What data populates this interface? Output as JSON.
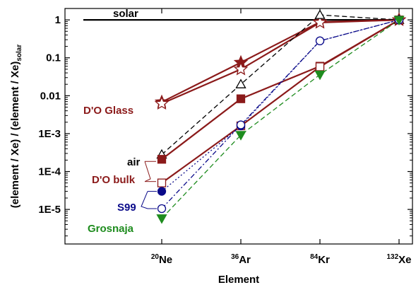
{
  "chart_data": {
    "type": "line",
    "title": "",
    "xlabel": "Element",
    "ylabel": "(element / Xe) / (element / Xe)",
    "ylabel_subscript": "solar",
    "yscale": "log",
    "ylim": [
      2e-06,
      3
    ],
    "y_ticks": [
      {
        "value": 1,
        "label": "1"
      },
      {
        "value": 0.1,
        "label": "0.1"
      },
      {
        "value": 0.01,
        "label": "0.01"
      },
      {
        "value": 0.001,
        "label": "1E-3"
      },
      {
        "value": 0.0001,
        "label": "1E-4"
      },
      {
        "value": 1e-05,
        "label": "1E-5"
      }
    ],
    "categories": [
      {
        "sup": "20",
        "name": "Ne"
      },
      {
        "sup": "36",
        "name": "Ar"
      },
      {
        "sup": "84",
        "name": "Kr"
      },
      {
        "sup": "132",
        "name": "Xe"
      }
    ],
    "reference_line": {
      "label": "solar",
      "value": 1,
      "color": "#000000"
    },
    "series": [
      {
        "name": "D'O Glass",
        "label_ref": "dog",
        "marker": "star-filled",
        "line": "solid",
        "color": "#8b1a1a",
        "values": [
          0.0068,
          0.075,
          0.88,
          1.0
        ]
      },
      {
        "name": "D'O Glass",
        "label_ref": "dog",
        "marker": "star-open",
        "line": "solid",
        "color": "#8b1a1a",
        "values": [
          0.0062,
          0.05,
          0.85,
          1.0
        ]
      },
      {
        "name": "air",
        "label_ref": "air",
        "marker": "triangle-open",
        "line": "dash",
        "color": "#000000",
        "values": [
          0.00028,
          0.02,
          1.35,
          1.0
        ]
      },
      {
        "name": "D'O bulk",
        "label_ref": "dob",
        "marker": "square-filled",
        "line": "solid",
        "color": "#8b1a1a",
        "values": [
          0.00021,
          0.0083,
          0.06,
          1.0
        ]
      },
      {
        "name": "D'O bulk",
        "label_ref": "dob",
        "marker": "square-open",
        "line": "solid",
        "color": "#8b1a1a",
        "values": [
          5e-05,
          0.0016,
          0.058,
          1.0
        ]
      },
      {
        "name": "S99",
        "label_ref": "s99",
        "marker": "circle-filled",
        "line": "dot",
        "color": "#0a0a8a",
        "values": [
          3e-05,
          0.0016,
          0.28,
          1.0
        ]
      },
      {
        "name": "S99",
        "label_ref": "s99",
        "marker": "circle-open",
        "line": "dashdot",
        "color": "#0a0a8a",
        "values": [
          1.05e-05,
          0.0017,
          0.28,
          1.0
        ]
      },
      {
        "name": "Grosnaja",
        "label_ref": "gro",
        "marker": "triangle-down-filled",
        "line": "dash",
        "color": "#1e8c1e",
        "values": [
          5.8e-06,
          0.00092,
          0.036,
          1.0
        ]
      }
    ],
    "annotations": [
      {
        "id": "dog",
        "text": "D'O Glass",
        "color": "#8b1a1a"
      },
      {
        "id": "air",
        "text": "air",
        "color": "#000000"
      },
      {
        "id": "dob",
        "text": "D'O bulk",
        "color": "#8b1a1a"
      },
      {
        "id": "s99",
        "text": "S99",
        "color": "#0a0a8a"
      },
      {
        "id": "gro",
        "text": "Grosnaja",
        "color": "#1e8c1e"
      }
    ],
    "grid": false,
    "legend": "none"
  }
}
